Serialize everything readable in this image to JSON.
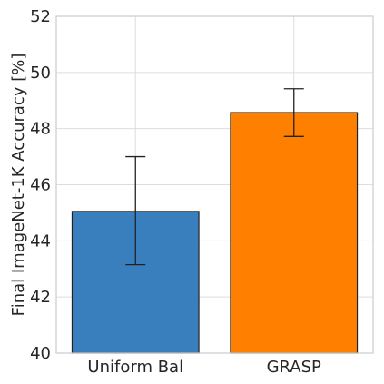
{
  "chart_data": {
    "type": "bar",
    "title": "",
    "xlabel": "",
    "ylabel": "Final ImageNet-1K Accuracy [%]",
    "ylim": [
      40,
      52
    ],
    "yticks": [
      40,
      42,
      44,
      46,
      48,
      50,
      52
    ],
    "grid": true,
    "categories": [
      "Uniform Bal",
      "GRASP"
    ],
    "values": [
      45.05,
      48.57
    ],
    "error_low": [
      43.15,
      47.72
    ],
    "error_high": [
      47.0,
      49.42
    ],
    "colors": [
      "#3a7fbd",
      "#ff7f00"
    ]
  }
}
